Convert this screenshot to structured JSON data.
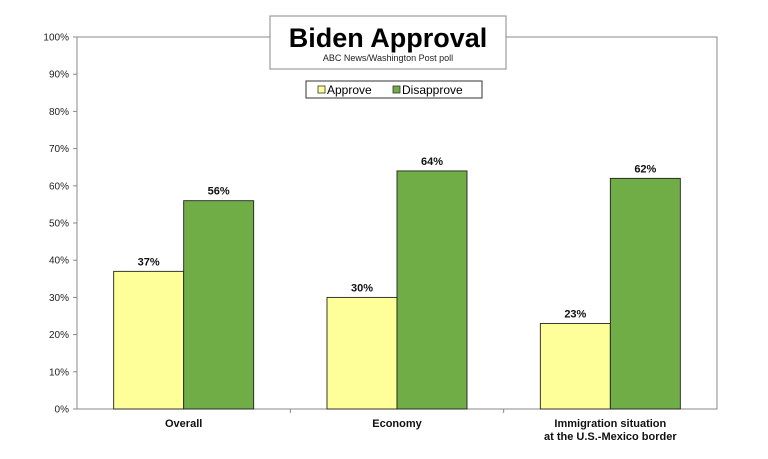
{
  "chart_data": {
    "type": "bar",
    "title": "Biden Approval",
    "subtitle": "ABC News/Washington Post poll",
    "categories": [
      [
        "Overall"
      ],
      [
        "Economy"
      ],
      [
        "Immigration situation",
        "at the U.S.-Mexico border"
      ]
    ],
    "series": [
      {
        "name": "Approve",
        "values": [
          37,
          30,
          23
        ],
        "labels": [
          "37%",
          "30%",
          "23%"
        ],
        "color": "#ffff99"
      },
      {
        "name": "Disapprove",
        "values": [
          56,
          64,
          62
        ],
        "labels": [
          "56%",
          "64%",
          "62%"
        ],
        "color": "#70ad47"
      }
    ],
    "y_ticks": [
      "0%",
      "10%",
      "20%",
      "30%",
      "40%",
      "50%",
      "60%",
      "70%",
      "80%",
      "90%",
      "100%"
    ],
    "ylim": [
      0,
      100
    ],
    "grid": false,
    "legend_position": "top-center"
  }
}
